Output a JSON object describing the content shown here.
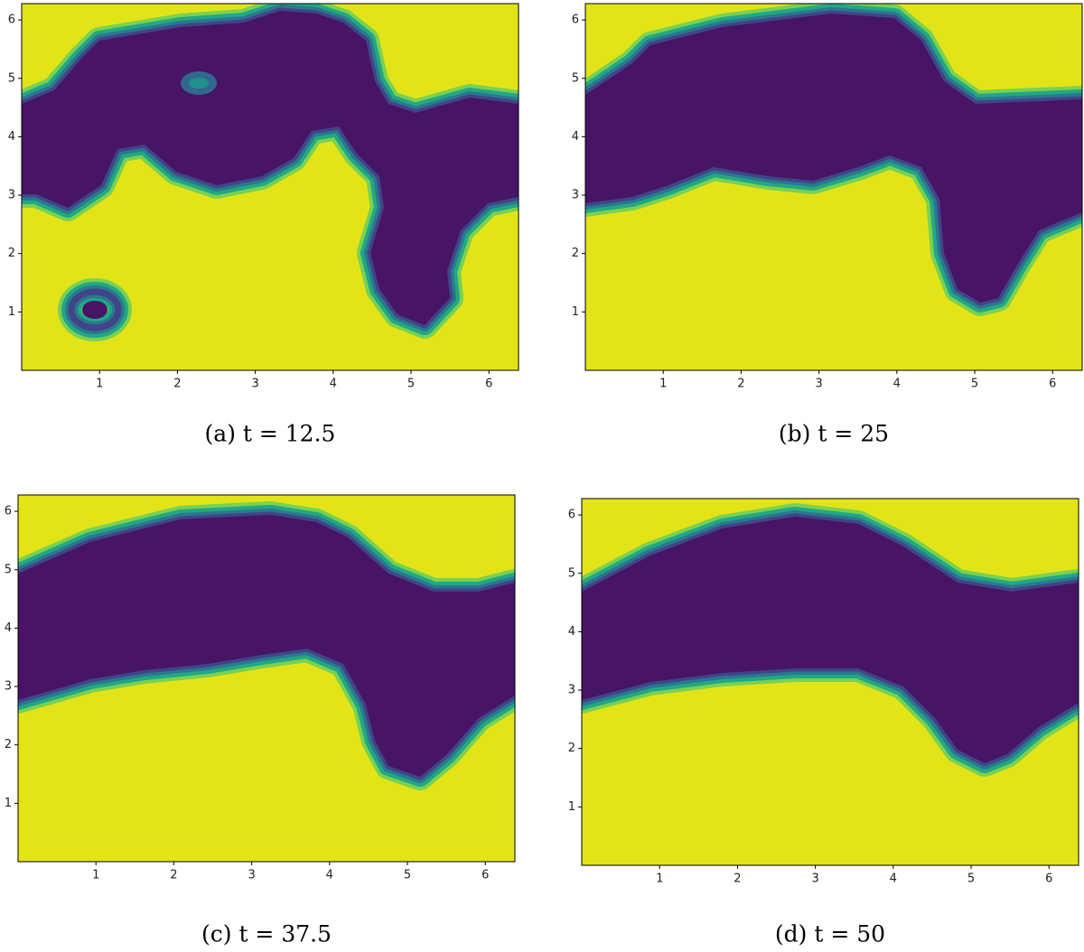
{
  "chart_data": [
    {
      "type": "contour",
      "title": "(a) t = 12.5",
      "xlim": [
        0,
        6.38
      ],
      "ylim": [
        0,
        6.28
      ],
      "xticks": [
        1,
        2,
        3,
        4,
        5,
        6
      ],
      "yticks": [
        1,
        2,
        3,
        4,
        5,
        6
      ]
    },
    {
      "type": "contour",
      "title": "(b) t = 25",
      "xlim": [
        0,
        6.38
      ],
      "ylim": [
        0,
        6.28
      ],
      "xticks": [
        1,
        2,
        3,
        4,
        5,
        6
      ],
      "yticks": [
        1,
        2,
        3,
        4,
        5,
        6
      ]
    },
    {
      "type": "contour",
      "title": "(c) t = 37.5",
      "xlim": [
        0,
        6.38
      ],
      "ylim": [
        0,
        6.28
      ],
      "xticks": [
        1,
        2,
        3,
        4,
        5,
        6
      ],
      "yticks": [
        1,
        2,
        3,
        4,
        5,
        6
      ]
    },
    {
      "type": "contour",
      "title": "(d) t = 50",
      "xlim": [
        0,
        6.38
      ],
      "ylim": [
        0,
        6.28
      ],
      "xticks": [
        1,
        2,
        3,
        4,
        5,
        6
      ],
      "yticks": [
        1,
        2,
        3,
        4,
        5,
        6
      ]
    }
  ]
}
